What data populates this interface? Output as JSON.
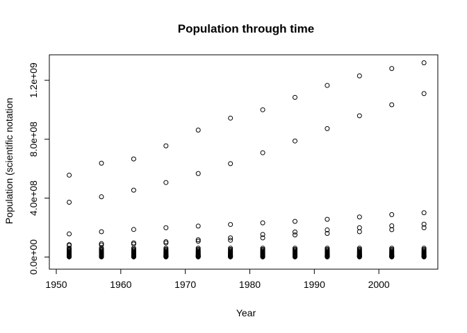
{
  "chart_data": {
    "type": "scatter",
    "title": "Population through time",
    "xlabel": "Year",
    "ylabel": "Population (scientific notation",
    "xlim": [
      1950,
      2007
    ],
    "ylim": [
      0,
      1320000000
    ],
    "x_ticks": [
      1950,
      1960,
      1970,
      1980,
      1990,
      2000
    ],
    "x_tick_labels": [
      "1950",
      "1960",
      "1970",
      "1980",
      "1990",
      "2000"
    ],
    "y_ticks": [
      0,
      400000000,
      800000000,
      1200000000
    ],
    "y_tick_labels": [
      "0.0e+00",
      "4.0e+08",
      "8.0e+08",
      "1.2e+09"
    ],
    "grid": false,
    "point_style": "open-circle",
    "years": [
      1952,
      1957,
      1962,
      1967,
      1972,
      1977,
      1982,
      1987,
      1992,
      1997,
      2002,
      2007
    ],
    "highlighted_values": [
      [
        556000000,
        372000000,
        157000000,
        84000000,
        78000000
      ],
      [
        637000000,
        409000000,
        172000000,
        91000000,
        82000000
      ],
      [
        666000000,
        454000000,
        187000000,
        96000000,
        88000000
      ],
      [
        755000000,
        506000000,
        199000000,
        104000000,
        96000000
      ],
      [
        862000000,
        567000000,
        210000000,
        117000000,
        107000000
      ],
      [
        943000000,
        634000000,
        221000000,
        130000000,
        114000000
      ],
      [
        1000000000,
        708000000,
        232000000,
        153000000,
        130000000
      ],
      [
        1084000000,
        788000000,
        242000000,
        170000000,
        150000000
      ],
      [
        1165000000,
        872000000,
        256000000,
        184000000,
        160000000
      ],
      [
        1230000000,
        959000000,
        272000000,
        199000000,
        172000000
      ],
      [
        1280000000,
        1034000000,
        288000000,
        212000000,
        186000000
      ],
      [
        1319000000,
        1110000000,
        301000000,
        223000000,
        199000000
      ]
    ],
    "low_cluster_values": [
      60000000,
      52000000,
      46000000,
      40000000,
      35000000,
      30000000,
      26000000,
      22000000,
      18000000,
      15000000,
      12000000,
      10000000,
      8000000,
      6000000,
      4500000,
      3000000,
      1800000,
      800000
    ]
  }
}
